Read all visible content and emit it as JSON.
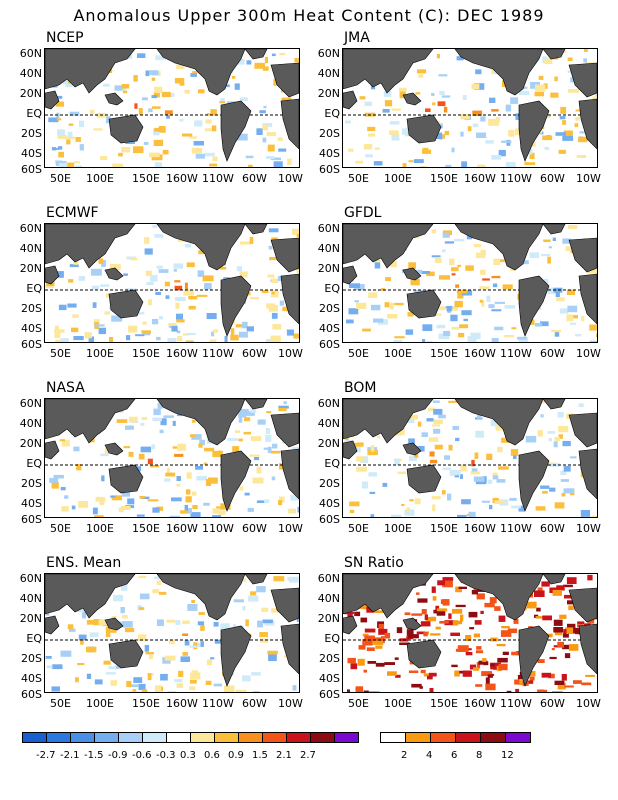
{
  "title": "Anomalous Upper 300m Heat Content (C): DEC 1989",
  "lat_labels": [
    "60N",
    "40N",
    "20N",
    "EQ",
    "20S",
    "40S",
    "60S"
  ],
  "lon_labels": [
    "50E",
    "100E",
    "150E",
    "160W",
    "110W",
    "60W",
    "10W"
  ],
  "panels": [
    {
      "name": "NCEP"
    },
    {
      "name": "JMA"
    },
    {
      "name": "ECMWF"
    },
    {
      "name": "GFDL"
    },
    {
      "name": "NASA"
    },
    {
      "name": "BOM"
    },
    {
      "name": "ENS. Mean"
    },
    {
      "name": "SN Ratio"
    }
  ],
  "anomaly_scale": {
    "colors": [
      "#1a5fd0",
      "#2a78e0",
      "#4a90e6",
      "#74aeee",
      "#a8d0f6",
      "#cfeaf9",
      "#ffffff",
      "#fde79a",
      "#fbbf3c",
      "#f98f1e",
      "#f2541a",
      "#c8141a",
      "#8c0c12",
      "#7b0ad0"
    ],
    "labels": [
      "-2.7",
      "-2.1",
      "-1.5",
      "-0.9",
      "-0.6",
      "-0.3",
      "0.3",
      "0.6",
      "0.9",
      "1.5",
      "2.1",
      "2.7"
    ]
  },
  "sn_scale": {
    "colors": [
      "#ffffff",
      "#f99a10",
      "#f2541a",
      "#c8141a",
      "#8c0c12",
      "#7b0ad0"
    ],
    "labels": [
      "2",
      "4",
      "6",
      "8",
      "12"
    ]
  }
}
